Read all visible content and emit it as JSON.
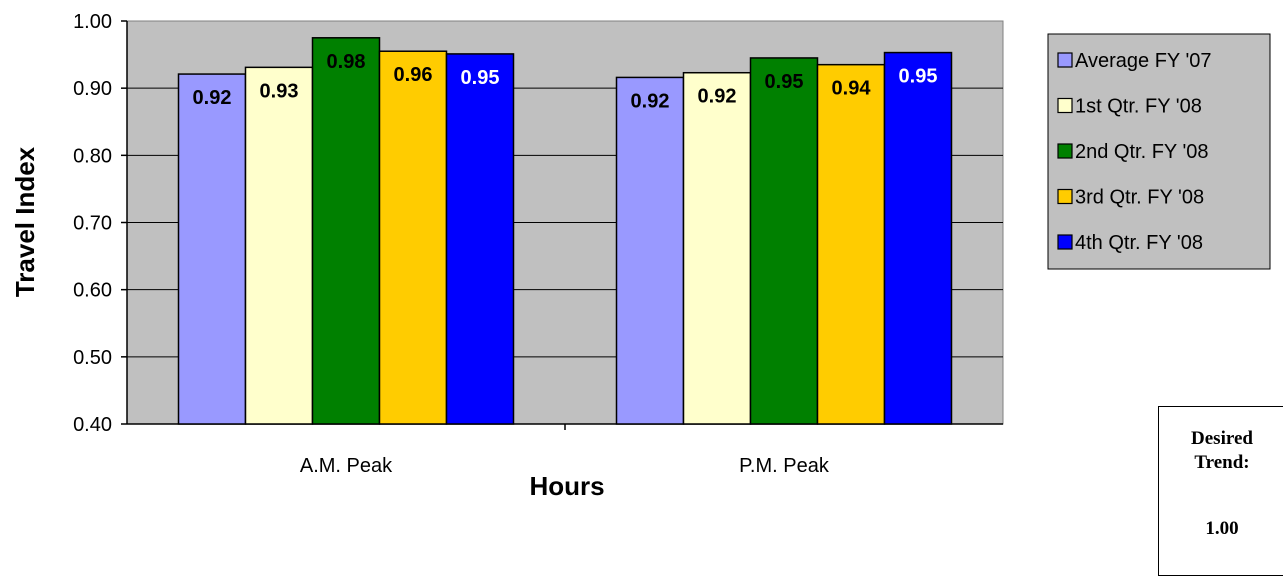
{
  "chart_data": {
    "type": "bar",
    "title": "",
    "xlabel": "Hours",
    "ylabel": "Travel Index",
    "categories": [
      "A.M. Peak",
      "P.M. Peak"
    ],
    "ylim": [
      0.4,
      1.0
    ],
    "yticks": [
      "0.40",
      "0.50",
      "0.60",
      "0.70",
      "0.80",
      "0.90",
      "1.00"
    ],
    "grid": true,
    "legend_position": "right",
    "series": [
      {
        "name": "Average FY '07",
        "color": "#9999ff",
        "values": [
          0.921,
          0.916
        ],
        "labels": [
          "0.92",
          "0.92"
        ],
        "label_color": "#000000"
      },
      {
        "name": "1st Qtr. FY '08",
        "color": "#ffffcc",
        "values": [
          0.931,
          0.923
        ],
        "labels": [
          "0.93",
          "0.92"
        ],
        "label_color": "#000000"
      },
      {
        "name": "2nd Qtr. FY '08",
        "color": "#008000",
        "values": [
          0.975,
          0.945
        ],
        "labels": [
          "0.98",
          "0.95"
        ],
        "label_color": "#000000"
      },
      {
        "name": "3rd Qtr. FY '08",
        "color": "#ffcc00",
        "values": [
          0.955,
          0.935
        ],
        "labels": [
          "0.96",
          "0.94"
        ],
        "label_color": "#000000"
      },
      {
        "name": "4th Qtr. FY '08",
        "color": "#0000ff",
        "values": [
          0.951,
          0.953
        ],
        "labels": [
          "0.95",
          "0.95"
        ],
        "label_color": "#ffffff"
      }
    ],
    "plot_background": "#c0c0c0"
  },
  "desired_trend": {
    "label": "Desired Trend:",
    "value": "1.00"
  }
}
